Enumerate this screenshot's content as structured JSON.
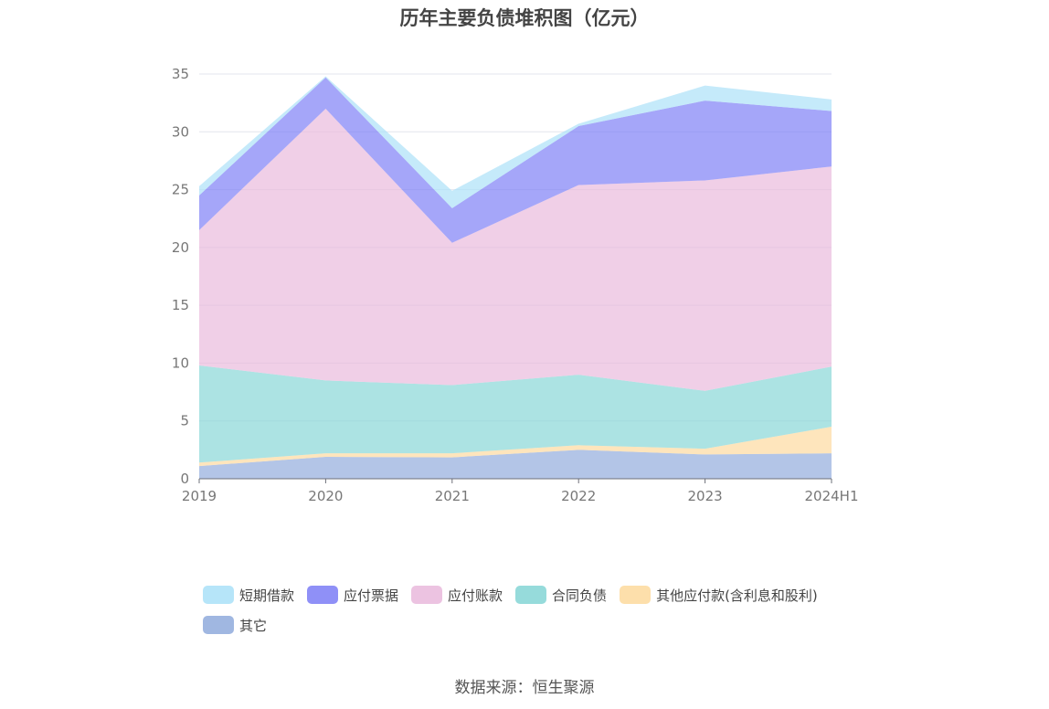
{
  "chart_data": {
    "type": "area",
    "stacked": true,
    "title": "历年主要负债堆积图（亿元）",
    "categories": [
      "2019",
      "2020",
      "2021",
      "2022",
      "2023",
      "2024H1"
    ],
    "y_ticks": [
      "0",
      "5",
      "10",
      "15",
      "20",
      "25",
      "30",
      "35"
    ],
    "ylim": [
      0,
      35
    ],
    "grid": true,
    "legend_position": "bottom",
    "series": [
      {
        "name": "其它",
        "color": "#8FAADC",
        "values": [
          1.1,
          1.9,
          1.85,
          2.5,
          2.1,
          2.2
        ]
      },
      {
        "name": "其他应付款(含利息和股利)",
        "color": "#FDD99C",
        "values": [
          0.3,
          0.3,
          0.35,
          0.4,
          0.5,
          2.3
        ]
      },
      {
        "name": "合同负债",
        "color": "#84D5D5",
        "values": [
          8.4,
          6.3,
          5.9,
          6.1,
          5.0,
          5.2
        ]
      },
      {
        "name": "应付账款",
        "color": "#E9B8DC",
        "values": [
          11.7,
          23.5,
          12.3,
          16.4,
          18.2,
          17.3
        ]
      },
      {
        "name": "应付票据",
        "color": "#7B7CF6",
        "values": [
          3.0,
          2.7,
          3.0,
          5.1,
          6.9,
          4.8
        ]
      },
      {
        "name": "短期借款",
        "color": "#A9E0F8",
        "values": [
          0.8,
          0.1,
          1.5,
          0.2,
          1.3,
          1.0
        ]
      }
    ]
  },
  "legend_order": [
    "短期借款",
    "应付票据",
    "应付账款",
    "合同负债",
    "其他应付款(含利息和股利)",
    "其它"
  ],
  "source": "数据来源：恒生聚源"
}
